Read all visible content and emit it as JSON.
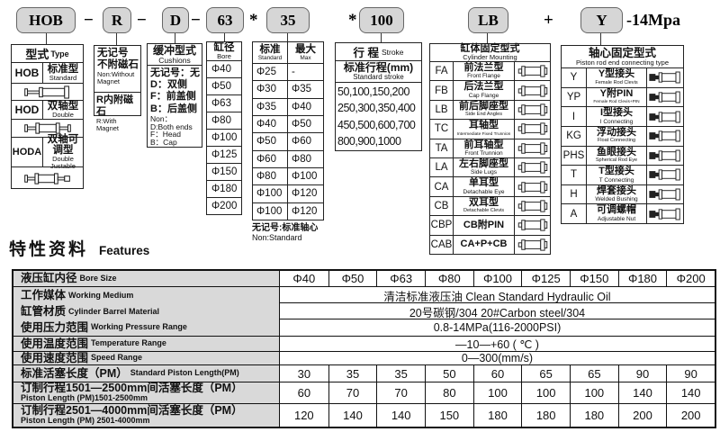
{
  "code_bar": {
    "boxes": [
      "HOB",
      "R",
      "D",
      "63",
      "35",
      "100",
      "LB",
      "Y"
    ],
    "sep1": "−",
    "sep2": "−",
    "sep3": "−",
    "sep4": "*",
    "sep5": "*",
    "sep6": "+",
    "suffix": "-14Mpa"
  },
  "type_col": {
    "header_zh": "型式",
    "header_en": "Type",
    "rows": [
      {
        "code": "HOB",
        "zh": "标准型",
        "en": "Standard"
      },
      {
        "code": "HOD",
        "zh": "双轴型",
        "en": "Double"
      },
      {
        "code": "HODA",
        "zh": "双轴可调型",
        "en": "Double Justable"
      }
    ]
  },
  "magnet_col": {
    "cell1_zh1": "无记号",
    "cell1_zh2": "不附磁石",
    "cell1_en1": "Non:Without",
    "cell1_en2": "Magnet",
    "cell2_zh": "R内附磁石",
    "cell2_en": "R:With Magnet"
  },
  "cushion_col": {
    "header_zh": "缓冲型式",
    "header_en": "Cushions",
    "zh_lines": [
      "无记号：无",
      "D：双侧",
      "F：前盖侧",
      "B：后盖侧"
    ],
    "en_lines": [
      "Non：",
      "D:Both ends",
      "F：Head",
      "B：Cap"
    ]
  },
  "bore_col": {
    "header_zh": "缸径",
    "header_en": "Bore",
    "values": [
      "Φ40",
      "Φ50",
      "Φ63",
      "Φ80",
      "Φ100",
      "Φ125",
      "Φ150",
      "Φ180",
      "Φ200"
    ]
  },
  "rod_dia_col": {
    "header_std_zh": "标准",
    "header_std_en": "Standard",
    "header_max_zh": "最大",
    "header_max_en": "Max",
    "rows": [
      [
        "Φ25",
        "-"
      ],
      [
        "Φ30",
        "Φ35"
      ],
      [
        "Φ35",
        "Φ40"
      ],
      [
        "Φ40",
        "Φ50"
      ],
      [
        "Φ50",
        "Φ60"
      ],
      [
        "Φ60",
        "Φ80"
      ],
      [
        "Φ80",
        "Φ100"
      ],
      [
        "Φ100",
        "Φ120"
      ],
      [
        "Φ100",
        "Φ120"
      ]
    ],
    "footer_zh": "无记号:标准轴心",
    "footer_en": "Non:Standard"
  },
  "stroke_col": {
    "header_zh": "行 程",
    "header_en": "Stroke",
    "sub_zh": "标准行程(mm)",
    "sub_en": "Standard stroke",
    "lines": [
      "50,100,150,200",
      "250,300,350,400",
      "450,500,600,700",
      "800,900,1000"
    ]
  },
  "mounting_col": {
    "header_zh": "缸体固定型式",
    "header_en": "Cylinder Mounting",
    "rows": [
      {
        "code": "FA",
        "zh": "前法兰型",
        "en": "Front Flange"
      },
      {
        "code": "FB",
        "zh": "后法兰型",
        "en": "Cap Flange"
      },
      {
        "code": "LB",
        "zh": "前后脚座型",
        "en": "Side End Angles"
      },
      {
        "code": "TC",
        "zh": "耳轴型",
        "en": "Intermediate Fixed Trunnion"
      },
      {
        "code": "TA",
        "zh": "前耳轴型",
        "en": "Front Trunnion"
      },
      {
        "code": "LA",
        "zh": "左右脚座型",
        "en": "Side Lugs"
      },
      {
        "code": "CA",
        "zh": "单耳型",
        "en": "Detachable Eye"
      },
      {
        "code": "CB",
        "zh": "双耳型",
        "en": "Detachable Clevis"
      },
      {
        "code": "CBP",
        "zh": "CB附PIN",
        "en": ""
      },
      {
        "code": "CAB",
        "zh": "CA+P+CB",
        "en": ""
      }
    ]
  },
  "rod_end_col": {
    "header_zh": "轴心固定型式",
    "header_en": "Piston rod end connecting type",
    "rows": [
      {
        "code": "Y",
        "zh": "Y型接头",
        "en": "Female Rod Clevis"
      },
      {
        "code": "YP",
        "zh": "Y附PIN",
        "en": "Female Rod Clevis+PIN"
      },
      {
        "code": "I",
        "zh": "I型接头",
        "en": "I Connecting"
      },
      {
        "code": "KG",
        "zh": "浮动接头",
        "en": "Float Connecting"
      },
      {
        "code": "PHS",
        "zh": "鱼眼接头",
        "en": "Spherical Rod Eye"
      },
      {
        "code": "T",
        "zh": "T型接头",
        "en": "T Connecting"
      },
      {
        "code": "H",
        "zh": "焊套接头",
        "en": "Welded Bushing"
      },
      {
        "code": "A",
        "zh": "可调螺帽",
        "en": "Adjustable Nut"
      }
    ]
  },
  "features": {
    "title_zh": "特性资料",
    "title_en": "Features",
    "rows": [
      {
        "zh": "液压缸内径",
        "en": "Bore Size",
        "values": [
          "Φ40",
          "Φ50",
          "Φ63",
          "Φ80",
          "Φ100",
          "Φ125",
          "Φ150",
          "Φ180",
          "Φ200"
        ]
      },
      {
        "zh": "工作媒体",
        "en": "Working Medium",
        "merged": "清洁标准液压油 Clean Standard Hydraulic Oil"
      },
      {
        "zh": "缸管材质",
        "en": "Cylinder Barrel Material",
        "merged": "20号碳钢/304 20#Carbon steel/304"
      },
      {
        "zh": "使用压力范围",
        "en": "Working Pressure Range",
        "merged": "0.8-14MPa(116-2000PSI)"
      },
      {
        "zh": "使用温度范围",
        "en": "Temperature Range",
        "merged": "—10—+60 ( ℃ )"
      },
      {
        "zh": "使用速度范围",
        "en": "Speed Range",
        "merged": "0—300(mm/s)"
      },
      {
        "zh": "标准活塞长度（PM）",
        "en": "Standard Piston Length(PM)",
        "values": [
          "30",
          "35",
          "35",
          "50",
          "60",
          "65",
          "65",
          "90",
          "90"
        ]
      },
      {
        "zh": "订制行程1501—2500mm间活塞长度（PM）",
        "en": "Piston Length (PM)1501-2500mm",
        "values": [
          "60",
          "70",
          "70",
          "80",
          "100",
          "100",
          "100",
          "140",
          "140"
        ]
      },
      {
        "zh": "订制行程2501—4000mm间活塞长度（PM）",
        "en": "Piston Length (PM) 2501-4000mm",
        "values": [
          "120",
          "140",
          "140",
          "150",
          "180",
          "180",
          "180",
          "200",
          "200"
        ]
      }
    ]
  },
  "colors": {
    "box_fill": "#d6d6d6",
    "label_fill": "#d9d9d9",
    "border": "#1a1a1a"
  }
}
